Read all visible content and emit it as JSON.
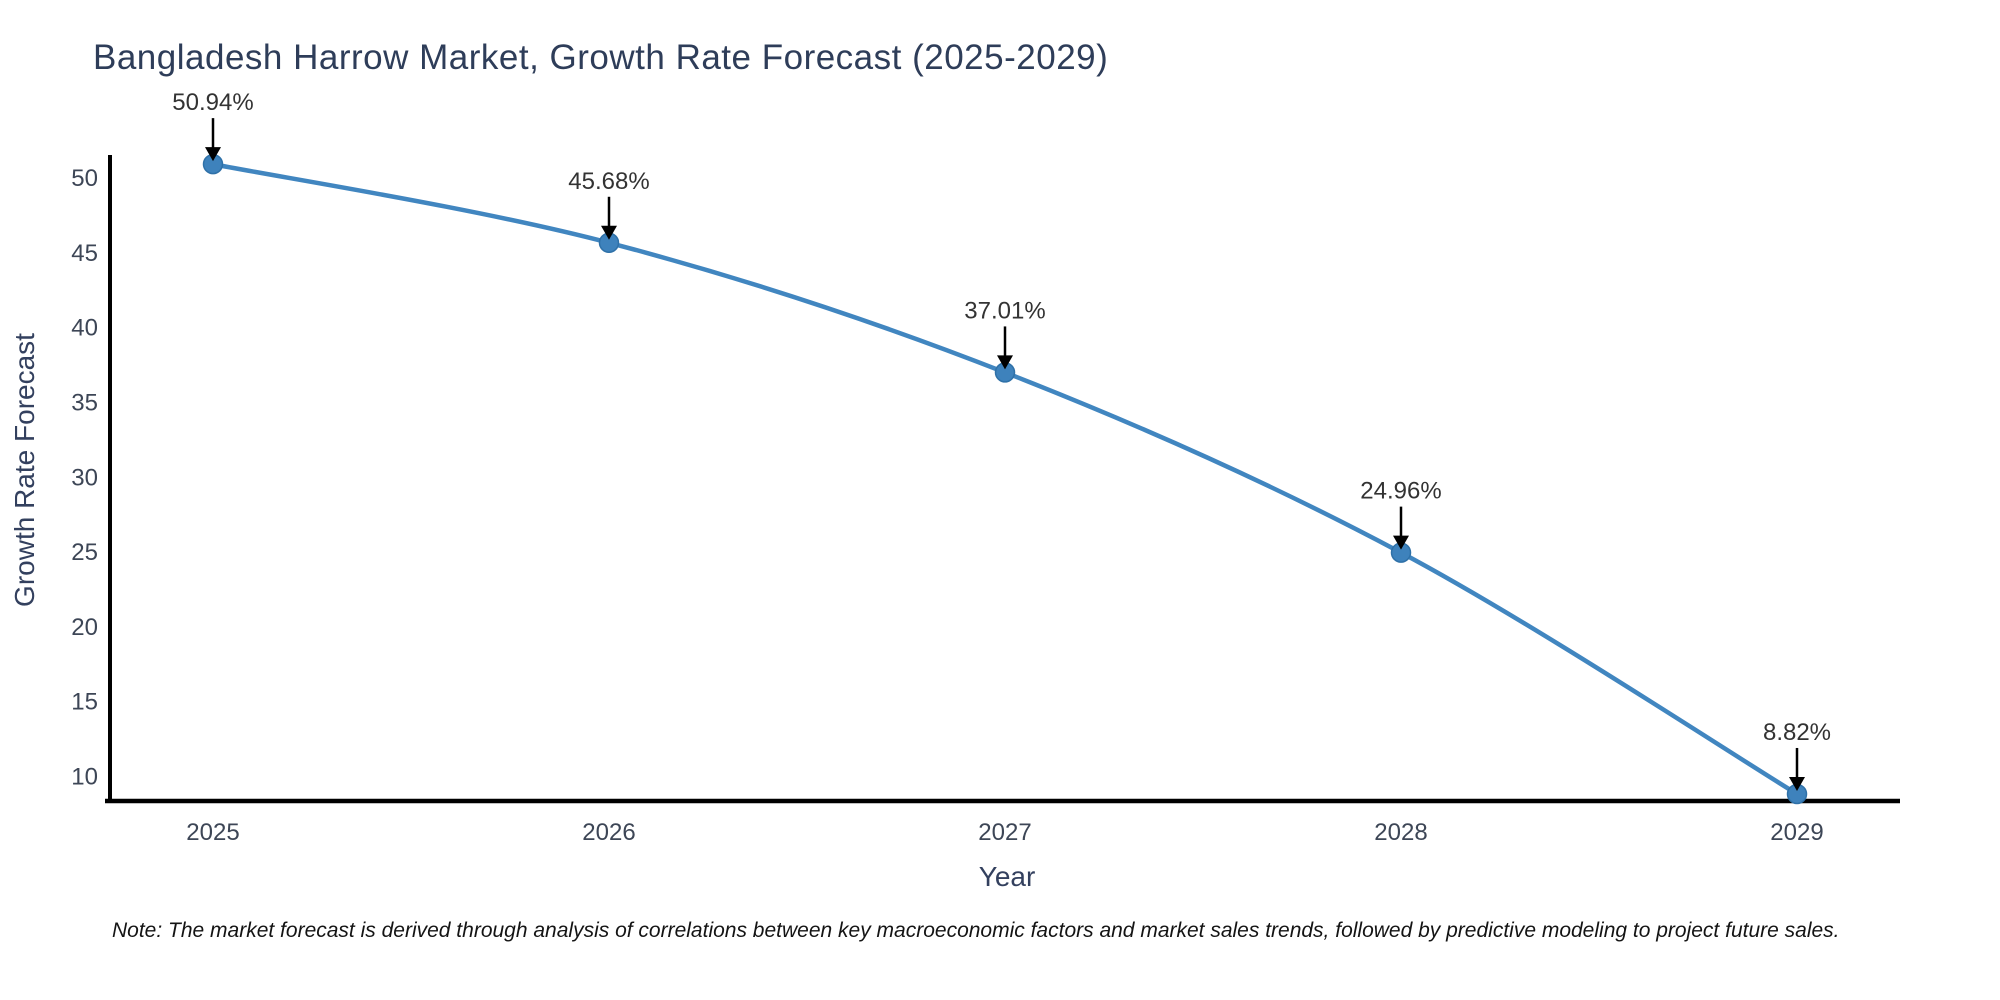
{
  "header": {
    "title": "Bangladesh Harrow Market, Growth Rate Forecast (2025-2029)"
  },
  "chart_data": {
    "type": "line",
    "title": "Bangladesh Harrow Market, Growth Rate Forecast (2025-2029)",
    "xlabel": "Year",
    "ylabel": "Growth Rate Forecast",
    "categories": [
      "2025",
      "2026",
      "2027",
      "2028",
      "2029"
    ],
    "series": [
      {
        "name": "Growth Rate Forecast",
        "values": [
          50.94,
          45.68,
          37.01,
          24.96,
          8.82
        ]
      }
    ],
    "point_labels": [
      "50.94%",
      "45.68%",
      "37.01%",
      "24.96%",
      "8.82%"
    ],
    "yticks": [
      10,
      15,
      20,
      25,
      30,
      35,
      40,
      45,
      50
    ],
    "yaxis_range": [
      8.35,
      51.55
    ],
    "grid": false,
    "legend_position": "none",
    "line_shape": "spline",
    "annotation_style": "value-label-with-down-arrow",
    "colors": {
      "line": "#4186c0",
      "marker_fill": "#3e82bc",
      "marker_edge": "#2f71a8",
      "axis_line": "#000000",
      "tick_label": "#3d4656",
      "title": "#2e3d59",
      "axis_title": "#33405e",
      "annotation_text": "#333333",
      "annotation_arrow": "#000000"
    }
  },
  "footnote": {
    "text": "Note: The market forecast is derived through analysis of correlations between key macroeconomic factors and market sales trends, followed by predictive modeling to project future sales."
  }
}
